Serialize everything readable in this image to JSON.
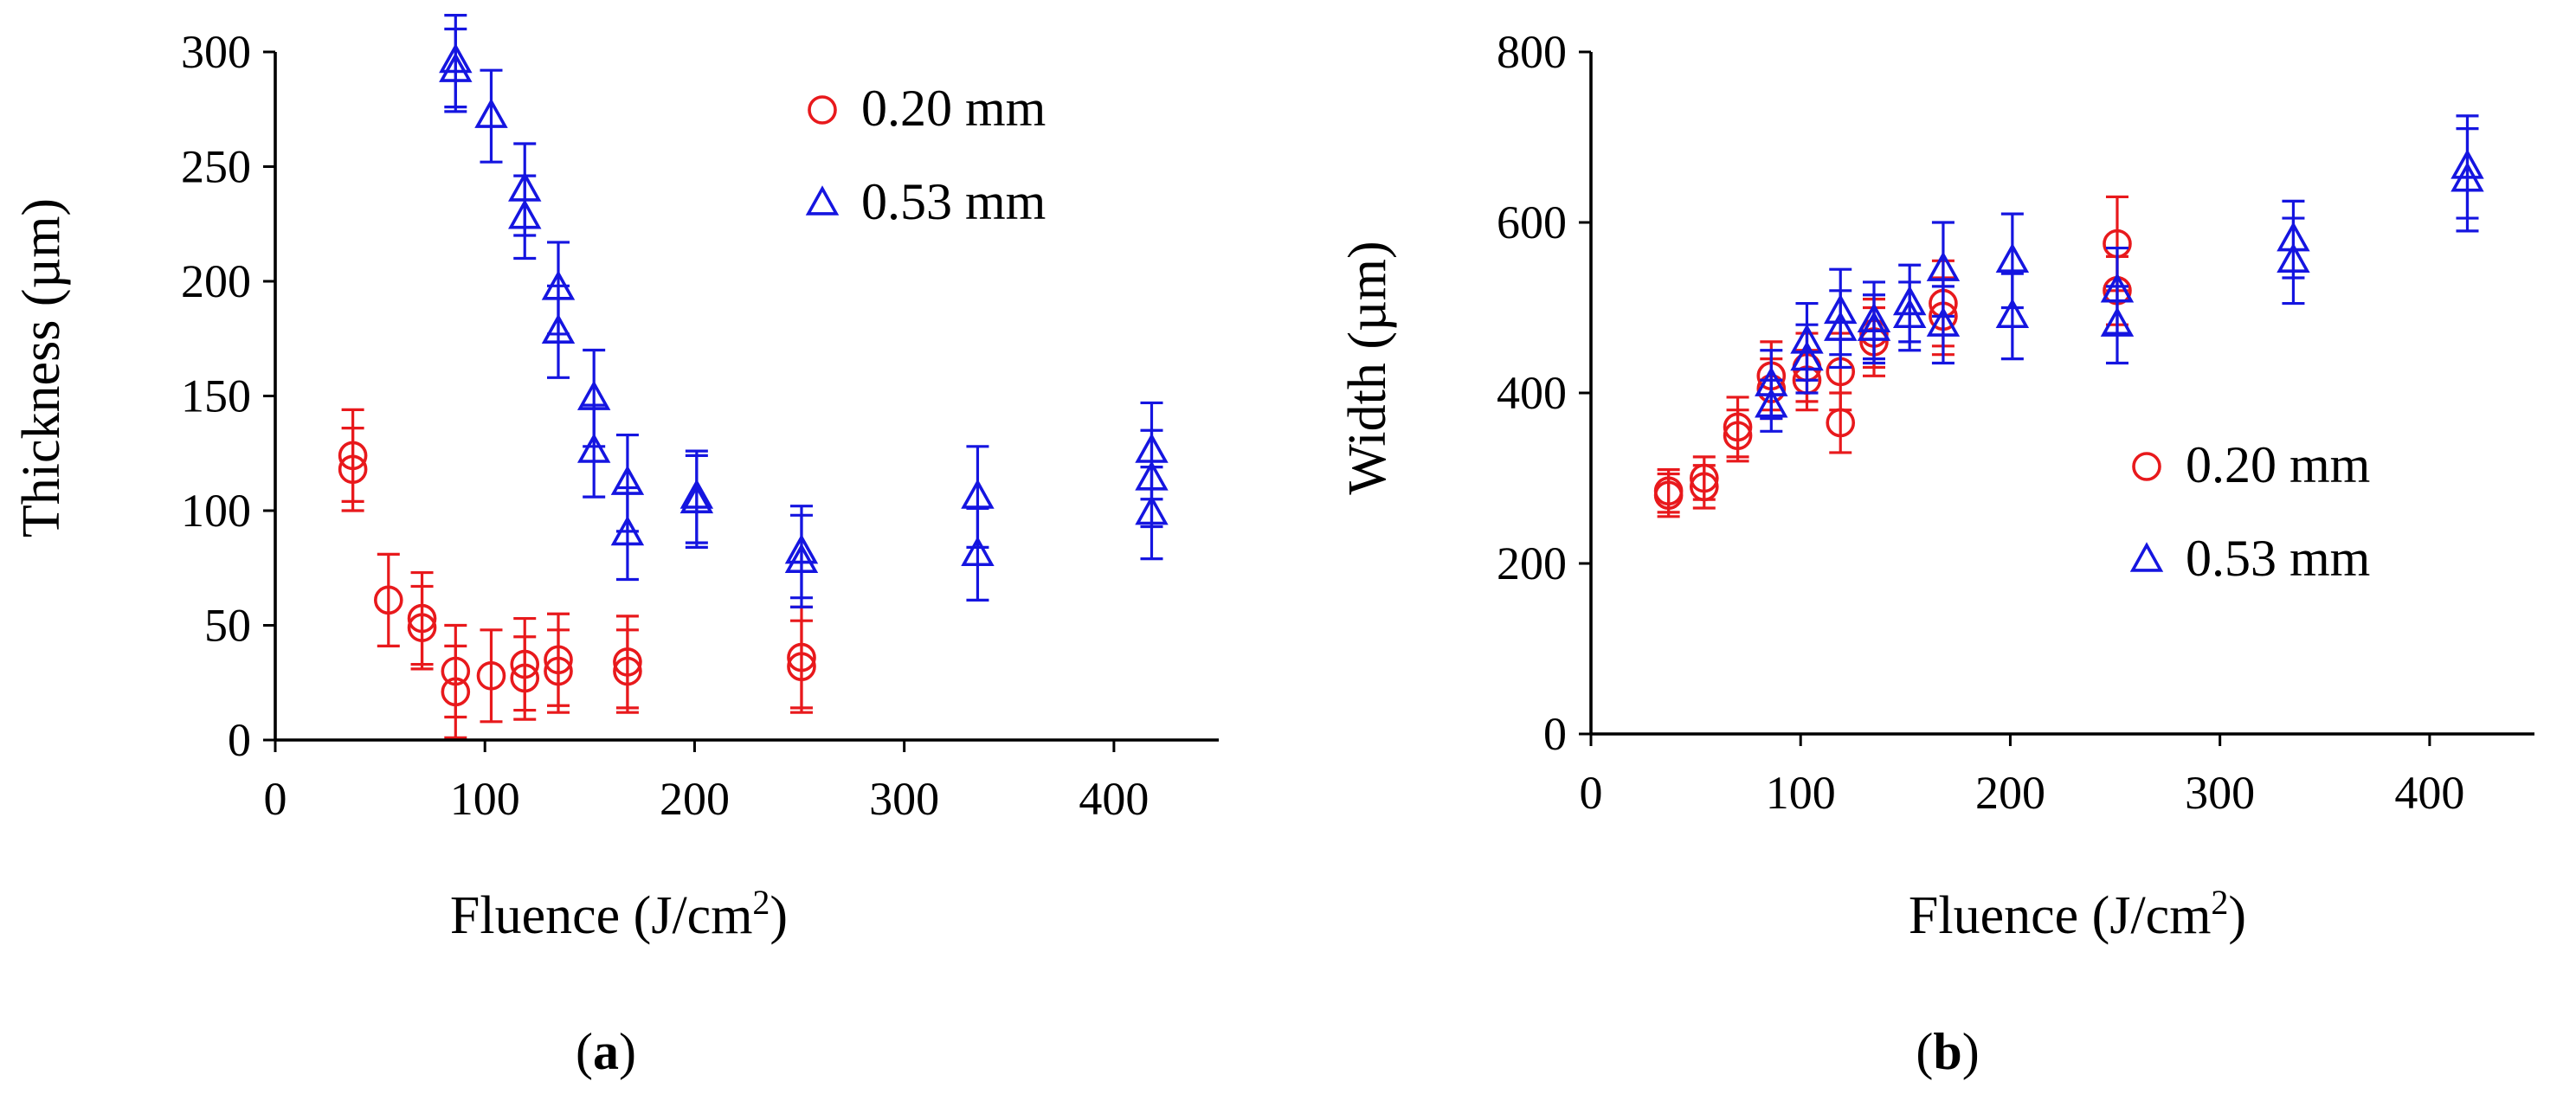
{
  "chart_data": [
    {
      "type": "scatter",
      "caption_letter": "a",
      "title": "",
      "xlabel": "Fluence (J/cm",
      "xlabel_sup": "2",
      "xlabel_end": ")",
      "ylabel": "Thickness (µm)",
      "xlim": [
        0,
        450
      ],
      "ylim": [
        0,
        300
      ],
      "xticks": [
        0,
        100,
        200,
        300,
        400
      ],
      "yticks": [
        0,
        50,
        100,
        150,
        200,
        250,
        300
      ],
      "grid": false,
      "legend_position": "top-right",
      "series": [
        {
          "name": "0.20 mm",
          "marker": "circle",
          "color": "#e8191c",
          "points": [
            {
              "x": 37,
              "y": 124,
              "err": 20
            },
            {
              "x": 37,
              "y": 118,
              "err": 18
            },
            {
              "x": 54,
              "y": 61,
              "err": 20
            },
            {
              "x": 70,
              "y": 53,
              "err": 20
            },
            {
              "x": 70,
              "y": 49,
              "err": 18
            },
            {
              "x": 86,
              "y": 30,
              "err": 20
            },
            {
              "x": 86,
              "y": 21,
              "err": 20
            },
            {
              "x": 103,
              "y": 28,
              "err": 20
            },
            {
              "x": 119,
              "y": 33,
              "err": 20
            },
            {
              "x": 119,
              "y": 27,
              "err": 18
            },
            {
              "x": 135,
              "y": 35,
              "err": 20
            },
            {
              "x": 135,
              "y": 30,
              "err": 18
            },
            {
              "x": 168,
              "y": 34,
              "err": 20
            },
            {
              "x": 168,
              "y": 30,
              "err": 18
            },
            {
              "x": 251,
              "y": 36,
              "err": 22
            },
            {
              "x": 251,
              "y": 32,
              "err": 20
            }
          ]
        },
        {
          "name": "0.53 mm",
          "marker": "triangle",
          "color": "#1515e0",
          "points": [
            {
              "x": 86,
              "y": 296,
              "err": 20
            },
            {
              "x": 86,
              "y": 292,
              "err": 18
            },
            {
              "x": 103,
              "y": 272,
              "err": 20
            },
            {
              "x": 119,
              "y": 240,
              "err": 20
            },
            {
              "x": 119,
              "y": 228,
              "err": 18
            },
            {
              "x": 135,
              "y": 197,
              "err": 20
            },
            {
              "x": 135,
              "y": 178,
              "err": 20
            },
            {
              "x": 152,
              "y": 149,
              "err": 21
            },
            {
              "x": 152,
              "y": 126,
              "err": 20
            },
            {
              "x": 168,
              "y": 112,
              "err": 21
            },
            {
              "x": 168,
              "y": 90,
              "err": 20
            },
            {
              "x": 201,
              "y": 106,
              "err": 20
            },
            {
              "x": 201,
              "y": 104,
              "err": 20
            },
            {
              "x": 251,
              "y": 82,
              "err": 20
            },
            {
              "x": 251,
              "y": 78,
              "err": 20
            },
            {
              "x": 335,
              "y": 106,
              "err": 22
            },
            {
              "x": 335,
              "y": 81,
              "err": 20
            },
            {
              "x": 418,
              "y": 126,
              "err": 21
            },
            {
              "x": 418,
              "y": 114,
              "err": 21
            },
            {
              "x": 418,
              "y": 99,
              "err": 20
            }
          ]
        }
      ]
    },
    {
      "type": "scatter",
      "caption_letter": "b",
      "title": "",
      "xlabel": "Fluence (J/cm",
      "xlabel_sup": "2",
      "xlabel_end": ")",
      "ylabel": "Width (µm)",
      "xlim": [
        0,
        450
      ],
      "ylim": [
        0,
        800
      ],
      "xticks": [
        0,
        100,
        200,
        300,
        400
      ],
      "yticks": [
        0,
        200,
        400,
        600,
        800
      ],
      "grid": false,
      "legend_position": "center-right",
      "series": [
        {
          "name": "0.20 mm",
          "marker": "circle",
          "color": "#e8191c",
          "points": [
            {
              "x": 37,
              "y": 285,
              "err": 25
            },
            {
              "x": 37,
              "y": 280,
              "err": 25
            },
            {
              "x": 54,
              "y": 300,
              "err": 25
            },
            {
              "x": 54,
              "y": 290,
              "err": 25
            },
            {
              "x": 70,
              "y": 360,
              "err": 35
            },
            {
              "x": 70,
              "y": 350,
              "err": 30
            },
            {
              "x": 86,
              "y": 420,
              "err": 40
            },
            {
              "x": 86,
              "y": 405,
              "err": 35
            },
            {
              "x": 103,
              "y": 430,
              "err": 40
            },
            {
              "x": 103,
              "y": 415,
              "err": 35
            },
            {
              "x": 119,
              "y": 425,
              "err": 45
            },
            {
              "x": 119,
              "y": 365,
              "err": 35
            },
            {
              "x": 135,
              "y": 470,
              "err": 40
            },
            {
              "x": 135,
              "y": 460,
              "err": 40
            },
            {
              "x": 168,
              "y": 505,
              "err": 50
            },
            {
              "x": 168,
              "y": 490,
              "err": 45
            },
            {
              "x": 251,
              "y": 575,
              "err": 55
            },
            {
              "x": 251,
              "y": 520,
              "err": 40
            }
          ]
        },
        {
          "name": "0.53 mm",
          "marker": "triangle",
          "color": "#1515e0",
          "points": [
            {
              "x": 86,
              "y": 410,
              "err": 40
            },
            {
              "x": 86,
              "y": 385,
              "err": 30
            },
            {
              "x": 103,
              "y": 460,
              "err": 45
            },
            {
              "x": 103,
              "y": 440,
              "err": 40
            },
            {
              "x": 119,
              "y": 495,
              "err": 50
            },
            {
              "x": 119,
              "y": 475,
              "err": 45
            },
            {
              "x": 135,
              "y": 485,
              "err": 45
            },
            {
              "x": 135,
              "y": 475,
              "err": 40
            },
            {
              "x": 152,
              "y": 505,
              "err": 45
            },
            {
              "x": 152,
              "y": 490,
              "err": 40
            },
            {
              "x": 168,
              "y": 545,
              "err": 55
            },
            {
              "x": 168,
              "y": 480,
              "err": 45
            },
            {
              "x": 201,
              "y": 555,
              "err": 55
            },
            {
              "x": 201,
              "y": 490,
              "err": 50
            },
            {
              "x": 251,
              "y": 520,
              "err": 50
            },
            {
              "x": 251,
              "y": 480,
              "err": 45
            },
            {
              "x": 335,
              "y": 580,
              "err": 45
            },
            {
              "x": 335,
              "y": 555,
              "err": 50
            },
            {
              "x": 418,
              "y": 665,
              "err": 60
            },
            {
              "x": 418,
              "y": 650,
              "err": 60
            }
          ]
        }
      ]
    }
  ]
}
